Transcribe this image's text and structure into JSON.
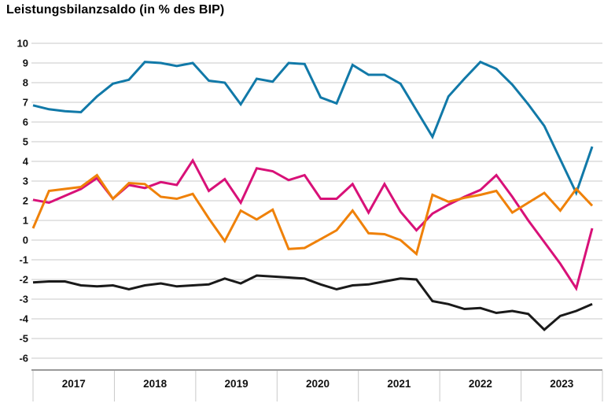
{
  "page": {
    "title": "Leistungsbilanzsaldo (in % des BIP)"
  },
  "colors": {
    "background": "#ffffff",
    "grid_line": "#c9c9c9",
    "axis_line": "#9a9a9a",
    "tick_separator": "#c9c9c9",
    "text": "#111111",
    "series_blue": "#1179a8",
    "series_magenta": "#d81178",
    "series_orange": "#ef8109",
    "series_black": "#1a1a1a"
  },
  "chart_data": {
    "type": "line",
    "title": "Leistungsbilanzsaldo (in % des BIP)",
    "xlabel": "",
    "ylabel": "",
    "ylim": [
      -6,
      10
    ],
    "y_ticks": [
      10,
      9,
      8,
      7,
      6,
      5,
      4,
      3,
      2,
      1,
      0,
      -1,
      -2,
      -3,
      -4,
      -5,
      -6
    ],
    "x_year_labels": [
      "2017",
      "2018",
      "2019",
      "2020",
      "2021",
      "2022",
      "2023"
    ],
    "x_range_years": [
      2017,
      2024
    ],
    "grid": true,
    "legend_position": "none",
    "series": [
      {
        "name": "series-blue",
        "color": "#1179a8",
        "values": [
          6.85,
          6.65,
          6.55,
          6.5,
          7.3,
          7.95,
          8.15,
          9.05,
          9.0,
          8.85,
          9.0,
          8.1,
          8.0,
          6.9,
          8.2,
          8.05,
          9.0,
          8.95,
          7.25,
          6.95,
          8.9,
          8.4,
          8.4,
          7.95,
          6.6,
          5.25,
          7.3,
          8.2,
          9.05,
          8.7,
          7.9,
          6.9,
          5.8,
          4.1,
          2.4,
          4.75
        ]
      },
      {
        "name": "series-magenta",
        "color": "#d81178",
        "values": [
          2.05,
          1.9,
          2.25,
          2.6,
          3.15,
          2.1,
          2.8,
          2.65,
          2.95,
          2.8,
          4.05,
          2.5,
          3.1,
          1.9,
          3.65,
          3.5,
          3.05,
          3.3,
          2.1,
          2.1,
          2.85,
          1.4,
          2.85,
          1.45,
          0.5,
          1.35,
          1.8,
          2.2,
          2.55,
          3.3,
          2.2,
          1.0,
          -0.1,
          -1.2,
          -2.45,
          0.6
        ]
      },
      {
        "name": "series-orange",
        "color": "#ef8109",
        "values": [
          0.6,
          2.5,
          2.6,
          2.7,
          3.3,
          2.1,
          2.9,
          2.85,
          2.2,
          2.1,
          2.35,
          1.1,
          -0.05,
          1.5,
          1.05,
          1.55,
          -0.45,
          -0.4,
          0.05,
          0.5,
          1.5,
          0.35,
          0.3,
          0.0,
          -0.7,
          2.3,
          1.95,
          2.15,
          2.3,
          2.5,
          1.4,
          1.9,
          2.4,
          1.5,
          2.6,
          1.75
        ]
      },
      {
        "name": "series-black",
        "color": "#1a1a1a",
        "values": [
          -2.15,
          -2.1,
          -2.1,
          -2.3,
          -2.35,
          -2.3,
          -2.5,
          -2.3,
          -2.2,
          -2.35,
          -2.3,
          -2.25,
          -1.95,
          -2.2,
          -1.8,
          -1.85,
          -1.9,
          -1.95,
          -2.25,
          -2.5,
          -2.3,
          -2.25,
          -2.1,
          -1.95,
          -2.0,
          -3.1,
          -3.25,
          -3.5,
          -3.45,
          -3.7,
          -3.6,
          -3.75,
          -4.55,
          -3.85,
          -3.6,
          -3.25
        ]
      }
    ]
  }
}
